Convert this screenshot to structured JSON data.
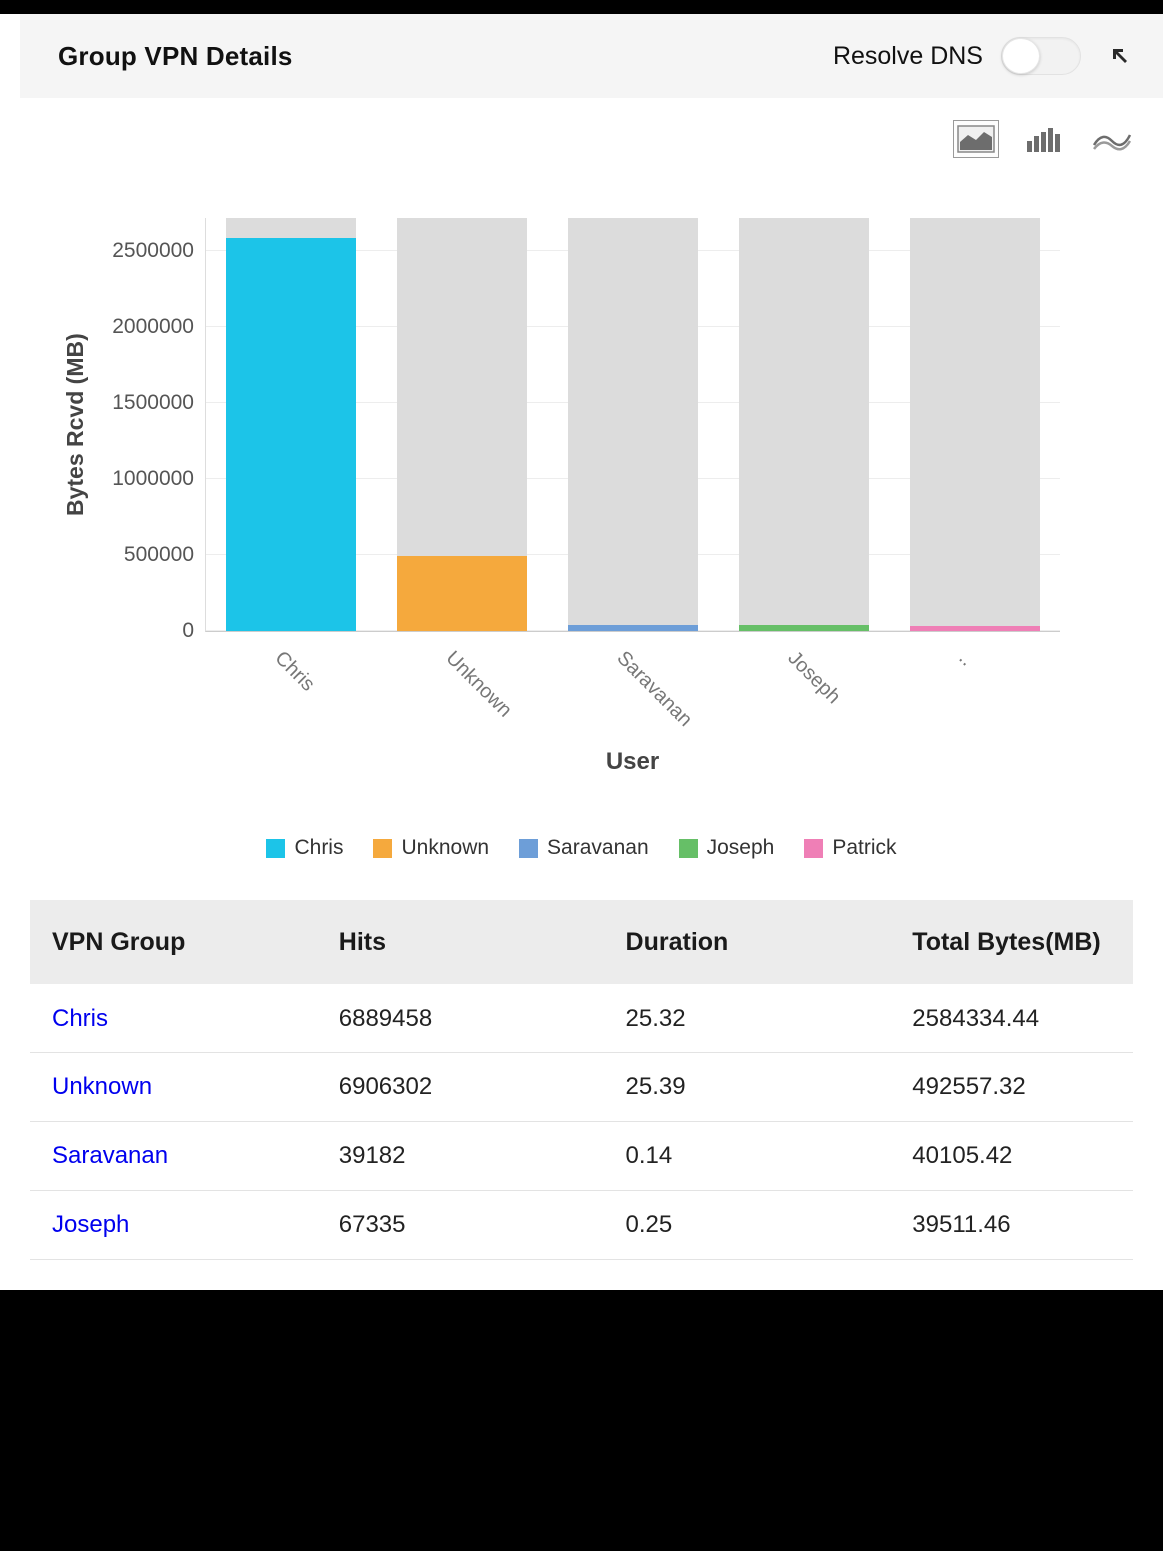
{
  "header": {
    "title": "Group VPN Details",
    "resolve_dns_label": "Resolve DNS",
    "resolve_dns_state": "off"
  },
  "toolbar": {
    "icons": [
      "area-chart",
      "bar-chart",
      "line-chart"
    ],
    "active_icon": "area-chart"
  },
  "chart_data": {
    "type": "bar",
    "title": "",
    "xlabel": "User",
    "ylabel": "Bytes Rcvd (MB)",
    "categories": [
      "Chris",
      "Unknown",
      "Saravanan",
      "Joseph",
      ".."
    ],
    "values": [
      2584334.44,
      492557.32,
      40105.42,
      39511.46,
      36000
    ],
    "background_max": 2720000,
    "ylim": [
      0,
      2720000
    ],
    "yticks": [
      0,
      500000,
      1000000,
      1500000,
      2000000,
      2500000
    ],
    "bar_colors": [
      "#1cc4e8",
      "#f5a93d",
      "#6d9ed8",
      "#66bf67",
      "#ef7fb6"
    ],
    "background_bar_color": "#dcdcdc",
    "grid": true,
    "legend_position": "bottom",
    "legend": [
      {
        "label": "Chris",
        "color": "#1cc4e8"
      },
      {
        "label": "Unknown",
        "color": "#f5a93d"
      },
      {
        "label": "Saravanan",
        "color": "#6d9ed8"
      },
      {
        "label": "Joseph",
        "color": "#66bf67"
      },
      {
        "label": "Patrick",
        "color": "#ef7fb6"
      }
    ]
  },
  "table": {
    "headers": [
      "VPN Group",
      "Hits",
      "Duration",
      "Total Bytes(MB)"
    ],
    "rows": [
      {
        "group": "Chris",
        "hits": "6889458",
        "duration": "25.32",
        "total_bytes": "2584334.44"
      },
      {
        "group": "Unknown",
        "hits": "6906302",
        "duration": "25.39",
        "total_bytes": "492557.32"
      },
      {
        "group": "Saravanan",
        "hits": "39182",
        "duration": "0.14",
        "total_bytes": "40105.42"
      },
      {
        "group": "Joseph",
        "hits": "67335",
        "duration": "0.25",
        "total_bytes": "39511.46"
      }
    ]
  }
}
